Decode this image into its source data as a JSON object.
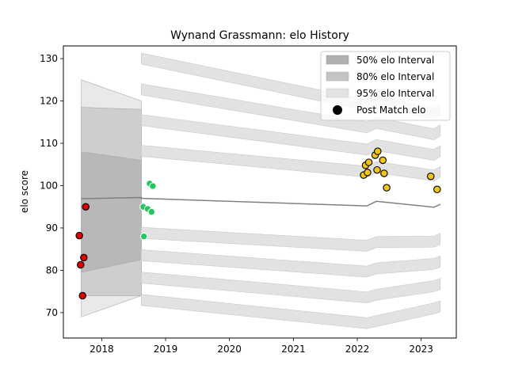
{
  "chart_data": {
    "type": "scatter",
    "title": "Wynand Grassmann: elo History",
    "xlabel": "",
    "ylabel": "elo score",
    "xlim": [
      2017.4,
      2023.55
    ],
    "ylim": [
      64,
      133
    ],
    "x_ticks": [
      2018,
      2019,
      2020,
      2021,
      2022,
      2023
    ],
    "y_ticks": [
      70,
      80,
      90,
      100,
      110,
      120,
      130
    ],
    "grid": false,
    "legend_position": "top-right",
    "legend": [
      {
        "label": "50% elo Interval",
        "kind": "band",
        "color": "#b0b0b0"
      },
      {
        "label": "80% elo Interval",
        "kind": "band",
        "color": "#c4c4c4"
      },
      {
        "label": "95% elo Interval",
        "kind": "band",
        "color": "#e2e2e2"
      },
      {
        "label": "Post Match elo",
        "kind": "marker",
        "color": "#000000"
      }
    ],
    "intervals": {
      "segments": [
        {
          "x": [
            2017.68,
            2018.62
          ],
          "mean": [
            96.9,
            97.2
          ],
          "p50": [
            [
              79.5,
              108.0
            ],
            [
              82.5,
              106.0
            ]
          ],
          "p80": [
            [
              74.0,
              118.5
            ],
            [
              74.0,
              118.0
            ]
          ],
          "p95": [
            [
              69.0,
              125.0
            ],
            [
              74.0,
              120.0
            ]
          ]
        },
        {
          "x": [
            2018.62,
            2022.15,
            2022.3,
            2023.2,
            2023.3
          ],
          "mean": [
            97.0,
            95.2,
            96.3,
            94.9,
            95.6
          ],
          "p95_outer_upper": [
            130.0,
            119.0,
            120.0,
            117.0,
            118.0
          ],
          "p95_outer_lower": [
            73.0,
            67.5,
            68.0,
            71.0,
            71.5
          ]
        }
      ],
      "colors": {
        "p50": "#b0b0b0",
        "p80": "#c4c4c4",
        "p95": "#e2e2e2",
        "mean": "#808080"
      }
    },
    "series": [
      {
        "color": "#e00000",
        "points": [
          {
            "x": 2017.65,
            "y": 88.2
          },
          {
            "x": 2017.67,
            "y": 81.3
          },
          {
            "x": 2017.7,
            "y": 74.0
          },
          {
            "x": 2017.72,
            "y": 83.0
          },
          {
            "x": 2017.75,
            "y": 95.0
          }
        ]
      },
      {
        "color": "#22c55e",
        "points": [
          {
            "x": 2018.66,
            "y": 88.0
          },
          {
            "x": 2018.65,
            "y": 95.0
          },
          {
            "x": 2018.72,
            "y": 94.5
          },
          {
            "x": 2018.78,
            "y": 93.8
          },
          {
            "x": 2018.75,
            "y": 100.5
          },
          {
            "x": 2018.8,
            "y": 99.9
          }
        ]
      },
      {
        "color": "#f0c419",
        "points": [
          {
            "x": 2022.1,
            "y": 102.5
          },
          {
            "x": 2022.13,
            "y": 104.8
          },
          {
            "x": 2022.16,
            "y": 103.1
          },
          {
            "x": 2022.18,
            "y": 105.5
          },
          {
            "x": 2022.28,
            "y": 107.2
          },
          {
            "x": 2022.31,
            "y": 103.7
          },
          {
            "x": 2022.32,
            "y": 108.1
          },
          {
            "x": 2022.4,
            "y": 106.0
          },
          {
            "x": 2022.42,
            "y": 102.9
          },
          {
            "x": 2022.46,
            "y": 99.5
          },
          {
            "x": 2023.15,
            "y": 102.2
          },
          {
            "x": 2023.25,
            "y": 99.1
          }
        ]
      }
    ]
  }
}
